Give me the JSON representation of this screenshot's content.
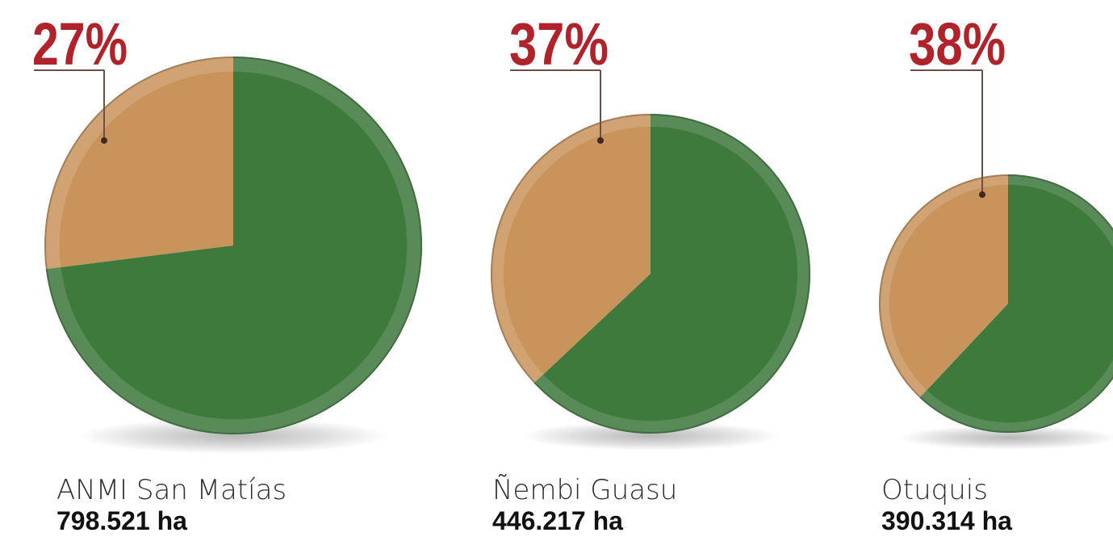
{
  "chart_data": [
    {
      "type": "pie",
      "categories": [
        "",
        ""
      ],
      "values": [
        27,
        73
      ],
      "title": "ANMI San Matías",
      "subtitle": "798.521 ha",
      "data_labels": [
        "27%"
      ],
      "colors": [
        "#c9945c",
        "#3f7a3d"
      ]
    },
    {
      "type": "pie",
      "categories": [
        "",
        ""
      ],
      "values": [
        37,
        63
      ],
      "title": "Ñembi Guasu",
      "subtitle": "446.217 ha",
      "data_labels": [
        "37%"
      ],
      "colors": [
        "#c9945c",
        "#3f7a3d"
      ]
    },
    {
      "type": "pie",
      "categories": [
        "",
        ""
      ],
      "values": [
        38,
        62
      ],
      "title": "Otuquis",
      "subtitle": "390.314 ha",
      "data_labels": [
        "38%"
      ],
      "colors": [
        "#c9945c",
        "#3f7a3d"
      ]
    }
  ],
  "colors": {
    "highlight": "#c9945c",
    "remainder": "#3f7a3d",
    "percent_text": "#b0232a",
    "leader_line": "#6f4f45"
  }
}
